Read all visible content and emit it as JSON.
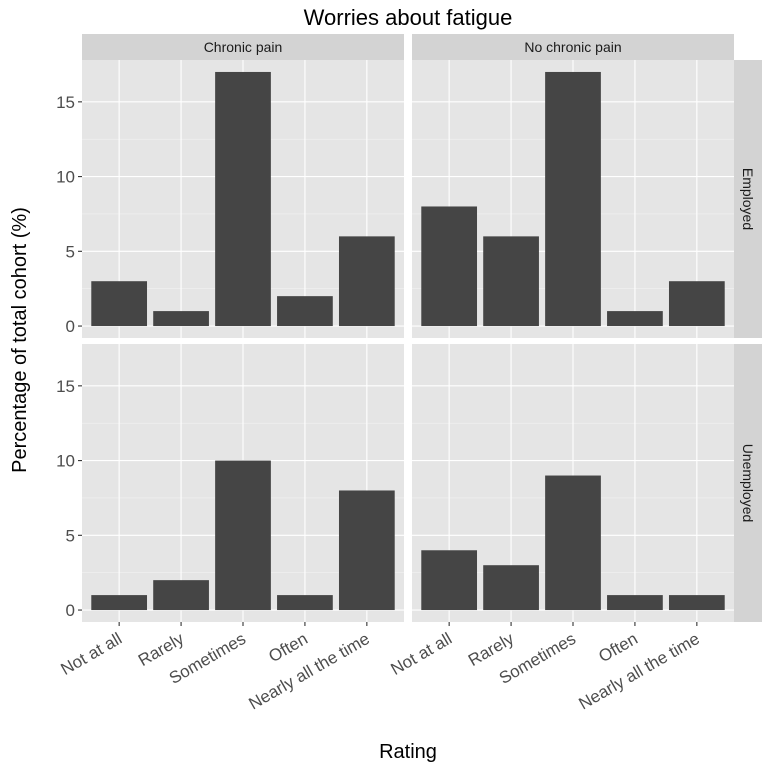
{
  "chart_data": {
    "type": "bar",
    "title": "Worries about fatigue",
    "xlabel": "Rating",
    "ylabel": "Percentage of total cohort (%)",
    "categories": [
      "Not at all",
      "Rarely",
      "Sometimes",
      "Often",
      "Nearly all the time"
    ],
    "ylim": [
      -0.8,
      17.8
    ],
    "yticks": [
      0,
      5,
      10,
      15
    ],
    "grid": true,
    "column_facets": [
      "Chronic pain",
      "No chronic pain"
    ],
    "row_facets": [
      "Employed",
      "Unemployed"
    ],
    "panels": [
      {
        "column": "Chronic pain",
        "row": "Employed",
        "values": [
          3,
          1,
          17,
          2,
          6
        ]
      },
      {
        "column": "No chronic pain",
        "row": "Employed",
        "values": [
          8,
          6,
          17,
          1,
          3
        ]
      },
      {
        "column": "Chronic pain",
        "row": "Unemployed",
        "values": [
          1,
          2,
          10,
          1,
          8
        ]
      },
      {
        "column": "No chronic pain",
        "row": "Unemployed",
        "values": [
          4,
          3,
          9,
          1,
          1
        ]
      }
    ],
    "bar_color": "#454545",
    "panel_background": "#e5e5e5",
    "strip_background": "#d3d3d3"
  }
}
